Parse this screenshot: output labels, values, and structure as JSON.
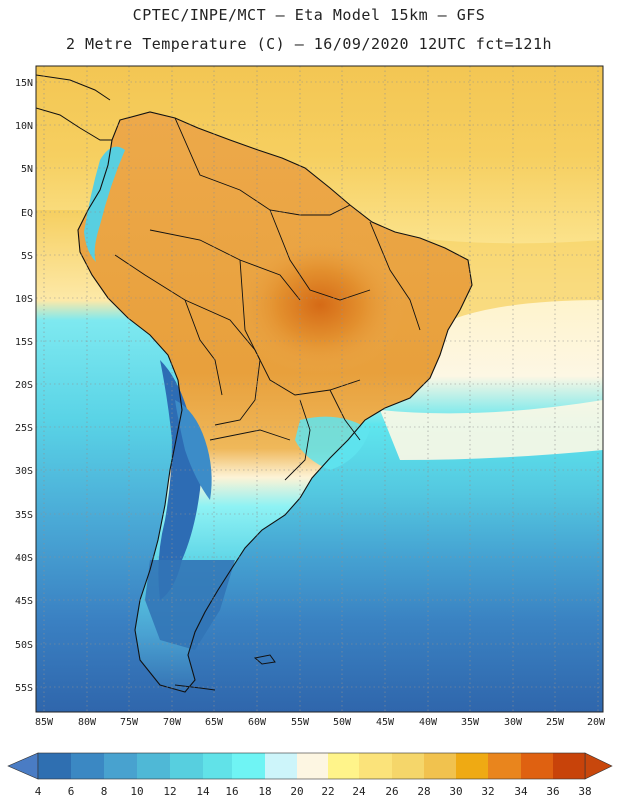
{
  "header": {
    "line1": "CPTEC/INPE/MCT –  Eta Model 15km – GFS",
    "line2": "2 Metre Temperature (C) – 16/09/2020 12UTC fct=121h"
  },
  "map": {
    "lat_labels": [
      "15N",
      "10N",
      "5N",
      "EQ",
      "5S",
      "10S",
      "15S",
      "20S",
      "25S",
      "30S",
      "35S",
      "40S",
      "45S",
      "50S",
      "55S"
    ],
    "lon_labels": [
      "85W",
      "80W",
      "75W",
      "70W",
      "65W",
      "60W",
      "55W",
      "50W",
      "45W",
      "40W",
      "35W",
      "30W",
      "25W",
      "20W"
    ],
    "ocean_colors": {
      "north": "#f5cd5c",
      "tropical": "#f7d979",
      "subtropic": "#fdf7e4",
      "cool": "#5ce0ec",
      "mid": "#4aa9d6",
      "south": "#3270b0",
      "land_hot": "#e9a43c",
      "land_core": "#d9731c",
      "andes": "#2d6cb4",
      "coast_line": "#111111",
      "grid_line": "#9a9a9a"
    }
  },
  "colorbar": {
    "labels": [
      "4",
      "6",
      "8",
      "10",
      "12",
      "14",
      "16",
      "18",
      "20",
      "22",
      "24",
      "26",
      "28",
      "30",
      "32",
      "34",
      "36",
      "38"
    ],
    "colors": [
      "#3d82c0",
      "#2f6fb1",
      "#3b88c3",
      "#48a2cf",
      "#4fb8d6",
      "#57cfdf",
      "#61e2e8",
      "#6ff4f4",
      "#cdf5fa",
      "#fdf6e2",
      "#fff48a",
      "#fbe37a",
      "#f5d66a",
      "#f1c24e",
      "#efaa13",
      "#e9851d",
      "#df6111",
      "#c8430a"
    ],
    "left_arrow_color": "#4a7cc4",
    "right_arrow_color": "#c8470c"
  }
}
